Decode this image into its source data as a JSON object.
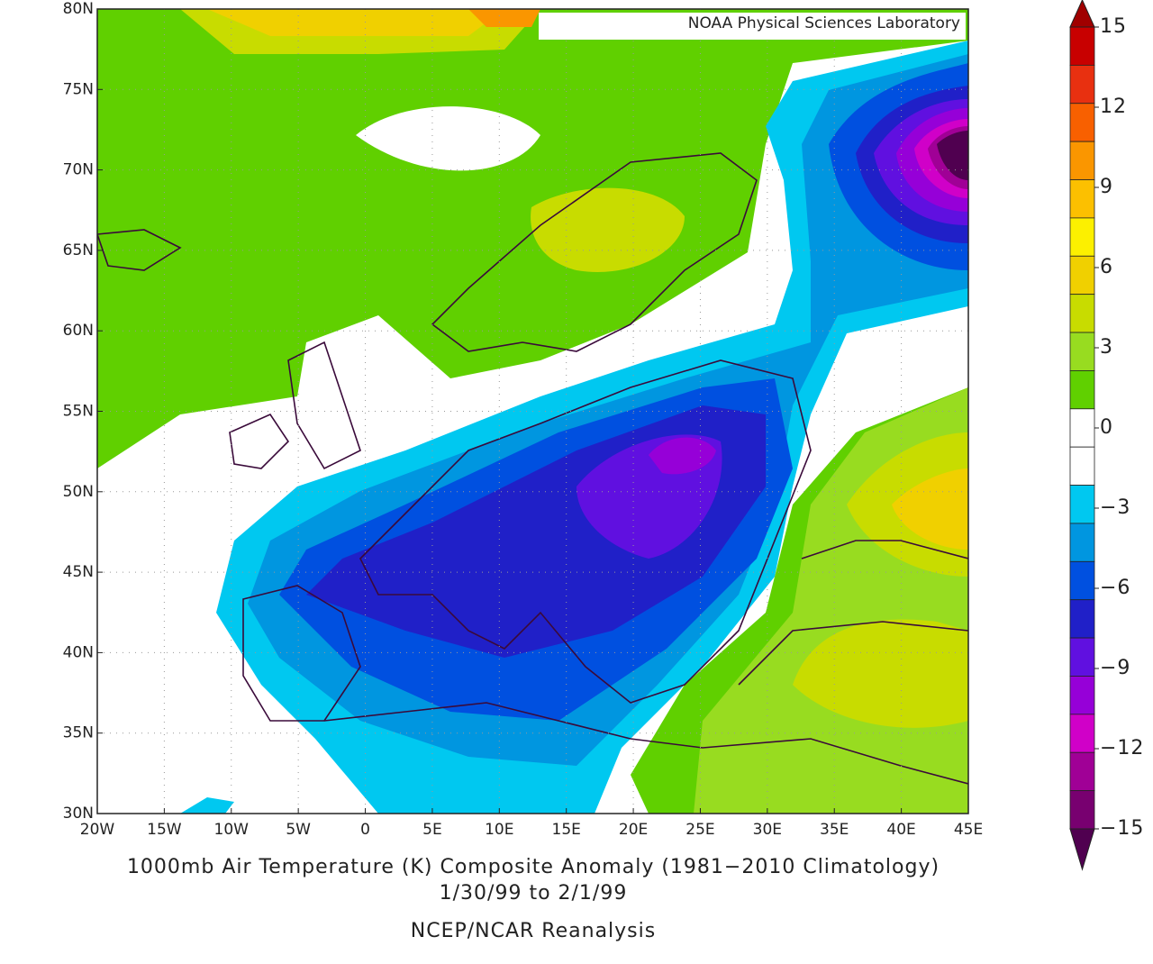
{
  "map": {
    "credit": "NOAA Physical Sciences Laboratory",
    "title": "1000mb Air Temperature (K) Composite Anomaly (1981−2010 Climatology)",
    "date_range": "1/30/99  to 2/1/99",
    "source": "NCEP/NCAR Reanalysis",
    "lon_range": [
      -20,
      45
    ],
    "lat_range": [
      30,
      80
    ],
    "lon_ticks": [
      {
        "value": -20,
        "label": "20W"
      },
      {
        "value": -15,
        "label": "15W"
      },
      {
        "value": -10,
        "label": "10W"
      },
      {
        "value": -5,
        "label": "5W"
      },
      0,
      {
        "value": 5,
        "label": "5E"
      },
      {
        "value": 10,
        "label": "10E"
      },
      {
        "value": 15,
        "label": "15E"
      },
      {
        "value": 20,
        "label": "20E"
      },
      {
        "value": 25,
        "label": "25E"
      },
      {
        "value": 30,
        "label": "30E"
      },
      {
        "value": 35,
        "label": "35E"
      },
      {
        "value": 40,
        "label": "40E"
      },
      {
        "value": 45,
        "label": "45E"
      }
    ],
    "lat_ticks": [
      {
        "value": 30,
        "label": "30N"
      },
      {
        "value": 35,
        "label": "35N"
      },
      {
        "value": 40,
        "label": "40N"
      },
      {
        "value": 45,
        "label": "45N"
      },
      {
        "value": 50,
        "label": "50N"
      },
      {
        "value": 55,
        "label": "55N"
      },
      {
        "value": 60,
        "label": "60N"
      },
      {
        "value": 65,
        "label": "65N"
      },
      {
        "value": 70,
        "label": "70N"
      },
      {
        "value": 75,
        "label": "75N"
      },
      {
        "value": 80,
        "label": "80N"
      }
    ]
  },
  "colorbar": {
    "ticks": [
      15,
      12,
      9,
      6,
      3,
      0,
      {
        "value": -3,
        "label": "−3"
      },
      {
        "value": -6,
        "label": "−6"
      },
      {
        "value": -9,
        "label": "−9"
      },
      {
        "value": -12,
        "label": "−12"
      },
      {
        "value": -15,
        "label": "−15"
      }
    ],
    "colors": [
      "#c80000",
      "#e83010",
      "#f86000",
      "#fa9600",
      "#fcc000",
      "#fcf000",
      "#f0d000",
      "#c8dc00",
      "#98dc20",
      "#60d000",
      "#ffffff",
      "#ffffff",
      "#00c8f0",
      "#0096e0",
      "#0050e0",
      "#2020c8",
      "#6010e0",
      "#9600d8",
      "#d000c8",
      "#a00096",
      "#780070"
    ],
    "over_color": "#a00000",
    "under_color": "#500050"
  }
}
